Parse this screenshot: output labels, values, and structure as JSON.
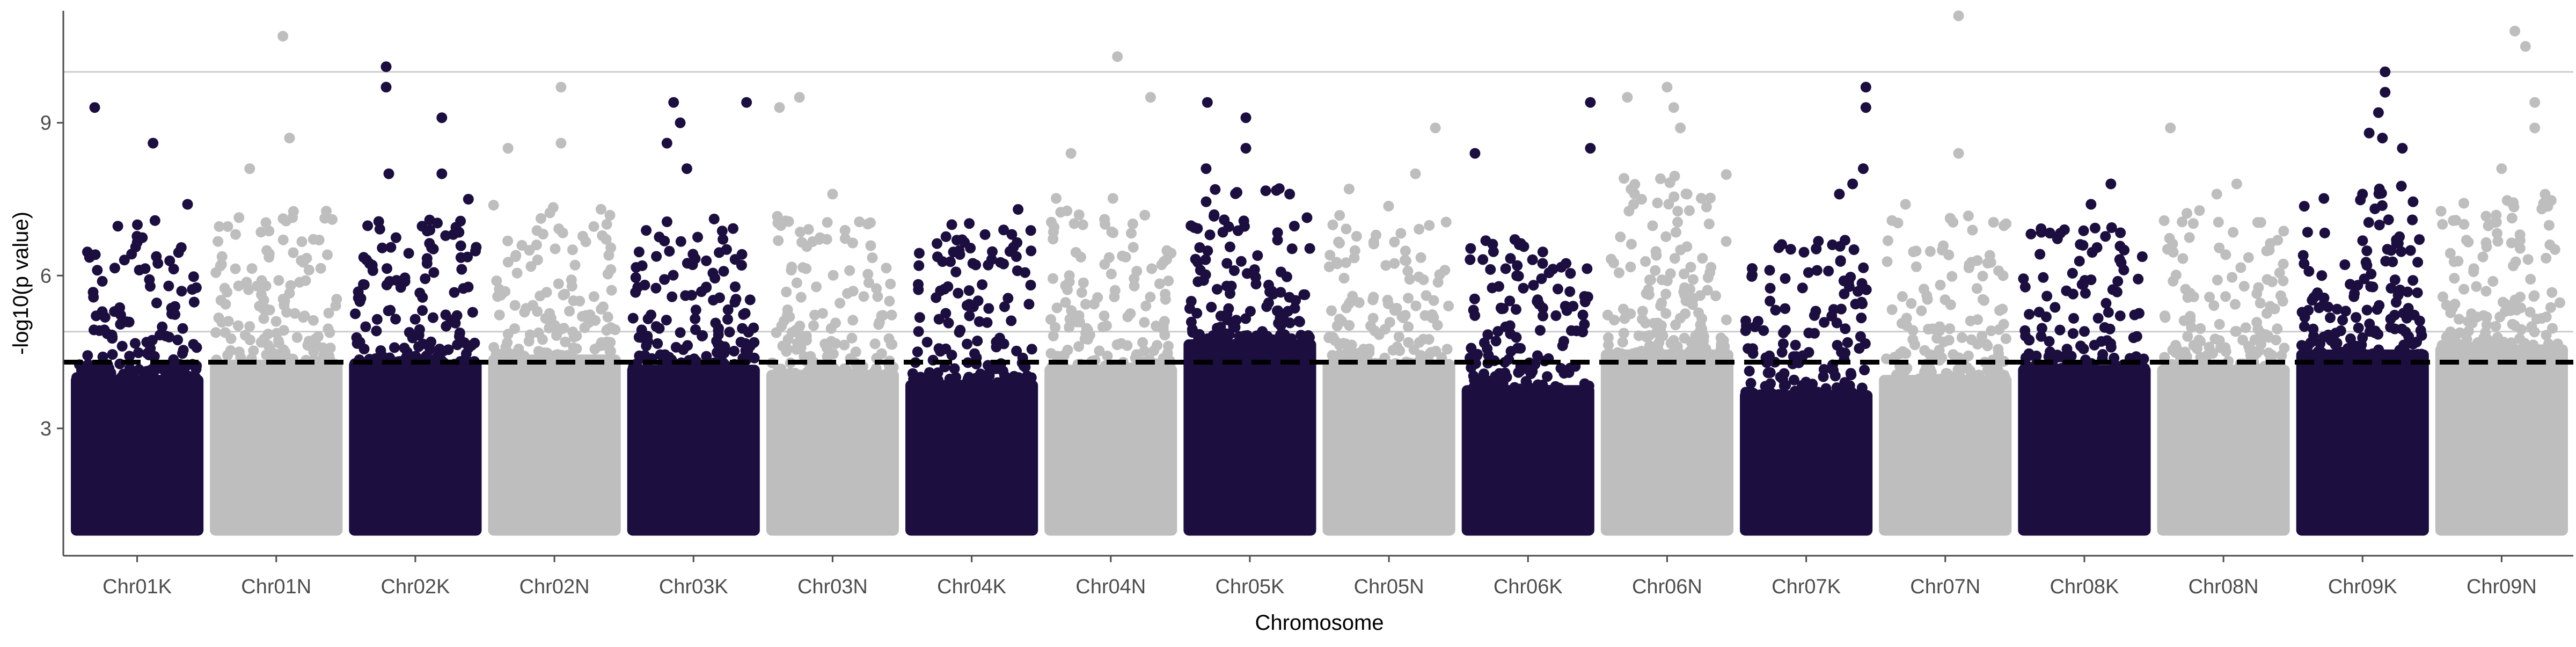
{
  "chart_data": {
    "type": "scatter",
    "subtype": "manhattan",
    "title": "",
    "xlabel": "Chromosome",
    "ylabel": "-log10(p value)",
    "ylim": [
      0.5,
      11.2
    ],
    "yticks": [
      3,
      6,
      9
    ],
    "grid": false,
    "legend": "none",
    "colors": {
      "odd": "#1c0f40",
      "even": "#bebebe",
      "axis": "#4d4d4d",
      "threshold_line": "#000000",
      "reference_line": "#cccccc"
    },
    "threshold_line": {
      "y": 4.3,
      "style": "dashed"
    },
    "reference_lines": [
      {
        "y": 10.0
      },
      {
        "y": 4.9
      }
    ],
    "points_floor": 1.0,
    "chromosomes": [
      {
        "name": "Chr01K",
        "color": "odd",
        "dense_top": 4.3,
        "spread_max": 7.1,
        "top_hits": [
          [
            0.18,
            9.3
          ],
          [
            0.62,
            8.6
          ],
          [
            0.88,
            7.4
          ]
        ]
      },
      {
        "name": "Chr01N",
        "color": "even",
        "dense_top": 4.6,
        "spread_max": 7.3,
        "top_hits": [
          [
            0.55,
            10.7
          ],
          [
            0.6,
            8.7
          ],
          [
            0.3,
            8.1
          ]
        ]
      },
      {
        "name": "Chr02K",
        "color": "odd",
        "dense_top": 4.6,
        "spread_max": 7.1,
        "top_hits": [
          [
            0.28,
            10.1
          ],
          [
            0.28,
            9.7
          ],
          [
            0.7,
            9.1
          ],
          [
            0.7,
            8.0
          ],
          [
            0.3,
            8.0
          ],
          [
            0.9,
            7.5
          ]
        ]
      },
      {
        "name": "Chr02N",
        "color": "even",
        "dense_top": 4.7,
        "spread_max": 7.4,
        "top_hits": [
          [
            0.55,
            9.7
          ],
          [
            0.55,
            8.6
          ],
          [
            0.15,
            8.5
          ]
        ]
      },
      {
        "name": "Chr03K",
        "color": "odd",
        "dense_top": 4.5,
        "spread_max": 7.2,
        "top_hits": [
          [
            0.35,
            9.4
          ],
          [
            0.4,
            9.0
          ],
          [
            0.9,
            9.4
          ],
          [
            0.3,
            8.6
          ],
          [
            0.45,
            8.1
          ]
        ]
      },
      {
        "name": "Chr03N",
        "color": "even",
        "dense_top": 4.4,
        "spread_max": 7.2,
        "top_hits": [
          [
            0.25,
            9.5
          ],
          [
            0.1,
            9.3
          ],
          [
            0.5,
            7.6
          ]
        ]
      },
      {
        "name": "Chr04K",
        "color": "odd",
        "dense_top": 4.2,
        "spread_max": 7.1,
        "top_hits": [
          [
            0.85,
            7.3
          ],
          [
            0.35,
            7.0
          ]
        ]
      },
      {
        "name": "Chr04N",
        "color": "even",
        "dense_top": 4.5,
        "spread_max": 7.6,
        "top_hits": [
          [
            0.55,
            10.3
          ],
          [
            0.8,
            9.5
          ],
          [
            0.2,
            8.4
          ]
        ]
      },
      {
        "name": "Chr05K",
        "color": "odd",
        "dense_top": 5.0,
        "spread_max": 7.8,
        "top_hits": [
          [
            0.18,
            9.4
          ],
          [
            0.47,
            9.1
          ],
          [
            0.47,
            8.5
          ],
          [
            0.17,
            8.1
          ],
          [
            0.8,
            7.6
          ]
        ]
      },
      {
        "name": "Chr05N",
        "color": "even",
        "dense_top": 4.6,
        "spread_max": 7.4,
        "top_hits": [
          [
            0.85,
            8.9
          ],
          [
            0.7,
            8.0
          ],
          [
            0.2,
            7.7
          ]
        ]
      },
      {
        "name": "Chr06K",
        "color": "odd",
        "dense_top": 4.1,
        "spread_max": 6.8,
        "top_hits": [
          [
            0.97,
            9.4
          ],
          [
            0.97,
            8.5
          ],
          [
            0.1,
            8.4
          ]
        ]
      },
      {
        "name": "Chr06N",
        "color": "even",
        "dense_top": 4.8,
        "spread_max": 8.0,
        "top_hits": [
          [
            0.2,
            9.5
          ],
          [
            0.5,
            9.7
          ],
          [
            0.55,
            9.3
          ],
          [
            0.6,
            8.9
          ]
        ]
      },
      {
        "name": "Chr07K",
        "color": "odd",
        "dense_top": 4.0,
        "spread_max": 6.7,
        "top_hits": [
          [
            0.95,
            9.7
          ],
          [
            0.95,
            9.3
          ],
          [
            0.93,
            8.1
          ],
          [
            0.85,
            7.8
          ],
          [
            0.75,
            7.6
          ]
        ]
      },
      {
        "name": "Chr07N",
        "color": "even",
        "dense_top": 4.3,
        "spread_max": 7.2,
        "top_hits": [
          [
            0.6,
            11.1
          ],
          [
            0.6,
            8.4
          ],
          [
            0.2,
            7.4
          ]
        ]
      },
      {
        "name": "Chr08K",
        "color": "odd",
        "dense_top": 4.5,
        "spread_max": 7.0,
        "top_hits": [
          [
            0.7,
            7.8
          ],
          [
            0.55,
            7.4
          ],
          [
            0.35,
            6.9
          ]
        ]
      },
      {
        "name": "Chr08N",
        "color": "even",
        "dense_top": 4.5,
        "spread_max": 7.3,
        "top_hits": [
          [
            0.1,
            8.9
          ],
          [
            0.6,
            7.8
          ],
          [
            0.45,
            7.6
          ]
        ]
      },
      {
        "name": "Chr09K",
        "color": "odd",
        "dense_top": 4.8,
        "spread_max": 7.8,
        "top_hits": [
          [
            0.67,
            10.0
          ],
          [
            0.67,
            9.6
          ],
          [
            0.62,
            9.2
          ],
          [
            0.55,
            8.8
          ],
          [
            0.65,
            8.7
          ],
          [
            0.8,
            8.5
          ],
          [
            0.5,
            7.6
          ]
        ]
      },
      {
        "name": "Chr09N",
        "color": "even",
        "dense_top": 4.9,
        "spread_max": 7.6,
        "top_hits": [
          [
            0.6,
            10.8
          ],
          [
            0.68,
            10.5
          ],
          [
            0.75,
            9.4
          ],
          [
            0.75,
            8.9
          ],
          [
            0.5,
            8.1
          ]
        ]
      }
    ]
  }
}
